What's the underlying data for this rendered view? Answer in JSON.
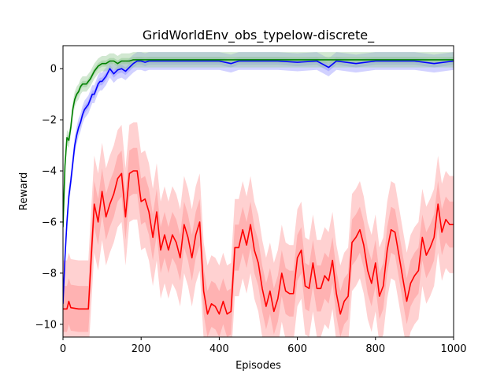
{
  "chart_data": {
    "type": "line",
    "title": "GridWorldEnv_obs_typelow-discrete_",
    "xlabel": "Episodes",
    "ylabel": "Reward",
    "xlim": [
      0,
      1000
    ],
    "ylim": [
      -10.5,
      0.9
    ],
    "xticks": [
      0,
      200,
      400,
      600,
      800,
      1000
    ],
    "xtick_labels": [
      "0",
      "200",
      "400",
      "600",
      "800",
      "1000"
    ],
    "yticks": [
      0,
      -2,
      -4,
      -6,
      -8,
      -10
    ],
    "ytick_labels": [
      "0",
      "−2",
      "−4",
      "−6",
      "−8",
      "−10"
    ],
    "grid": false,
    "legend": false,
    "series": [
      {
        "color": "#ff0000",
        "band_color": "#ff9999",
        "x": [
          0,
          10,
          15,
          20,
          40,
          65,
          70,
          80,
          90,
          100,
          110,
          120,
          130,
          140,
          150,
          160,
          170,
          180,
          190,
          200,
          210,
          220,
          230,
          240,
          250,
          260,
          270,
          280,
          290,
          300,
          310,
          320,
          330,
          340,
          350,
          360,
          370,
          380,
          390,
          400,
          410,
          420,
          430,
          440,
          450,
          460,
          470,
          480,
          490,
          500,
          510,
          520,
          530,
          540,
          550,
          560,
          570,
          580,
          590,
          600,
          610,
          620,
          630,
          640,
          650,
          660,
          670,
          680,
          690,
          700,
          710,
          720,
          730,
          740,
          750,
          760,
          770,
          780,
          790,
          800,
          810,
          820,
          830,
          840,
          850,
          860,
          870,
          880,
          890,
          900,
          910,
          920,
          930,
          940,
          950,
          960,
          970,
          980,
          990,
          1000
        ],
        "y": [
          -9.4,
          -9.4,
          -9.1,
          -9.35,
          -9.4,
          -9.4,
          -8.0,
          -5.3,
          -6.0,
          -4.8,
          -5.8,
          -5.3,
          -4.9,
          -4.3,
          -4.1,
          -5.8,
          -4.1,
          -4.0,
          -4.0,
          -5.2,
          -5.1,
          -5.6,
          -6.6,
          -5.6,
          -7.1,
          -6.5,
          -7.1,
          -6.5,
          -6.8,
          -7.4,
          -6.1,
          -6.6,
          -7.4,
          -6.5,
          -6.0,
          -8.7,
          -9.6,
          -9.2,
          -9.3,
          -9.6,
          -9.1,
          -9.6,
          -9.5,
          -7.0,
          -7.0,
          -6.3,
          -6.9,
          -6.1,
          -7.1,
          -7.6,
          -8.6,
          -9.3,
          -8.7,
          -9.5,
          -9.0,
          -8.0,
          -8.7,
          -8.8,
          -8.8,
          -7.4,
          -7.1,
          -8.5,
          -8.6,
          -7.6,
          -8.6,
          -8.6,
          -8.1,
          -8.3,
          -7.5,
          -8.8,
          -9.6,
          -9.1,
          -8.9,
          -6.8,
          -6.6,
          -6.3,
          -6.9,
          -7.9,
          -8.4,
          -7.6,
          -8.9,
          -8.5,
          -7.1,
          -6.3,
          -6.4,
          -7.3,
          -8.2,
          -9.1,
          -8.4,
          -8.1,
          -7.9,
          -6.6,
          -7.3,
          -7.0,
          -6.6,
          -5.3,
          -6.4,
          -5.9,
          -6.1,
          -6.1
        ],
        "band_outer": 1.9,
        "band_inner": 0.9
      },
      {
        "color": "#0000ff",
        "band_color": "#9999ff",
        "x": [
          0,
          5,
          10,
          15,
          20,
          25,
          30,
          35,
          40,
          45,
          50,
          55,
          60,
          65,
          70,
          75,
          80,
          85,
          90,
          95,
          100,
          110,
          120,
          130,
          140,
          150,
          160,
          170,
          180,
          190,
          200,
          210,
          220,
          250,
          300,
          350,
          400,
          430,
          450,
          500,
          550,
          600,
          650,
          680,
          700,
          750,
          800,
          850,
          900,
          950,
          1000
        ],
        "y": [
          -9.2,
          -7.4,
          -6.0,
          -5.0,
          -4.4,
          -3.7,
          -3.0,
          -2.6,
          -2.3,
          -2.1,
          -1.8,
          -1.6,
          -1.5,
          -1.4,
          -1.2,
          -1.0,
          -1.0,
          -0.8,
          -0.6,
          -0.5,
          -0.5,
          -0.3,
          0.0,
          -0.2,
          -0.05,
          0.0,
          -0.1,
          0.05,
          0.2,
          0.3,
          0.3,
          0.25,
          0.3,
          0.3,
          0.3,
          0.3,
          0.3,
          0.2,
          0.3,
          0.3,
          0.3,
          0.25,
          0.3,
          0.05,
          0.3,
          0.2,
          0.3,
          0.3,
          0.3,
          0.2,
          0.3
        ],
        "band_outer": 0.35,
        "band_inner": 0.15
      },
      {
        "color": "#008000",
        "band_color": "#99cc99",
        "x": [
          0,
          5,
          10,
          15,
          20,
          25,
          30,
          35,
          40,
          45,
          50,
          55,
          60,
          65,
          70,
          80,
          90,
          100,
          110,
          120,
          130,
          140,
          150,
          160,
          170,
          180,
          200,
          250,
          300,
          350,
          400,
          450,
          500,
          550,
          600,
          650,
          700,
          750,
          800,
          850,
          900,
          950,
          1000
        ],
        "y": [
          -6.2,
          -3.8,
          -2.7,
          -2.8,
          -2.3,
          -1.6,
          -1.2,
          -1.0,
          -0.9,
          -0.7,
          -0.6,
          -0.6,
          -0.6,
          -0.5,
          -0.4,
          -0.1,
          0.1,
          0.2,
          0.2,
          0.3,
          0.3,
          0.2,
          0.3,
          0.3,
          0.3,
          0.35,
          0.35,
          0.35,
          0.35,
          0.35,
          0.35,
          0.35,
          0.35,
          0.35,
          0.35,
          0.35,
          0.35,
          0.35,
          0.35,
          0.35,
          0.35,
          0.35,
          0.35
        ],
        "band_outer": 0.3,
        "band_inner": 0.12
      }
    ]
  }
}
